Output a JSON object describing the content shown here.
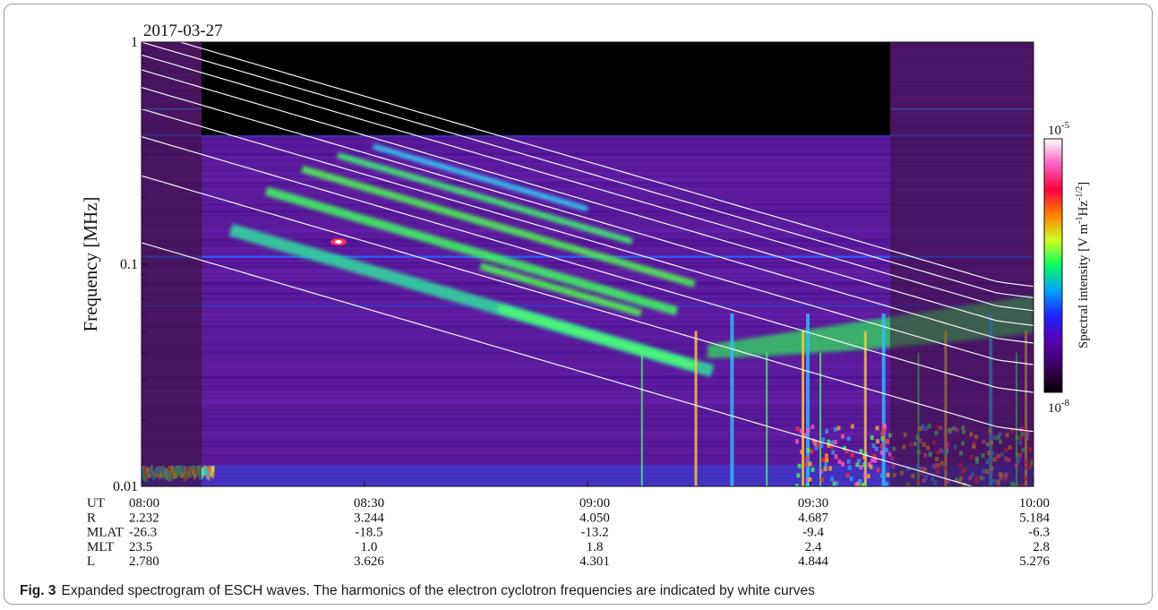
{
  "chart_data": {
    "type": "heatmap",
    "date_label": "2017-03-27",
    "ylabel": "Frequency [MHz]",
    "yscale": "log",
    "ylim": [
      0.01,
      1
    ],
    "y_ticks": [
      {
        "value": 1,
        "label": "1"
      },
      {
        "value": 0.1,
        "label": "0.1"
      },
      {
        "value": 0.01,
        "label": "0.01"
      }
    ],
    "colorbar": {
      "label": "Spectral intensity [V m-1Hz-1/2]",
      "label_parts": [
        "Spectral intensity [V m",
        "-1",
        "Hz",
        "-1/2",
        "]"
      ],
      "scale": "log",
      "min_label": {
        "base": "10",
        "exp": "-8"
      },
      "max_label": {
        "base": "10",
        "exp": "-5"
      },
      "colors": [
        "#000000",
        "#3a0060",
        "#5a00b0",
        "#2020ff",
        "#00a0ff",
        "#00ff60",
        "#d0ff20",
        "#ff8000",
        "#ff0040",
        "#ff60c0",
        "#ffffff"
      ]
    },
    "x_ticks": [
      "08:00",
      "08:30",
      "09:00",
      "09:30",
      "10:00"
    ],
    "ephemeris": [
      {
        "name": "UT",
        "values": [
          "08:00",
          "08:30",
          "09:00",
          "09:30",
          "10:00"
        ]
      },
      {
        "name": "R",
        "values": [
          "2.232",
          "3.244",
          "4.050",
          "4.687",
          "5.184"
        ]
      },
      {
        "name": "MLAT",
        "values": [
          "-26.3",
          "-18.5",
          "-13.2",
          "-9.4",
          "-6.3"
        ]
      },
      {
        "name": "MLT",
        "values": [
          "23.5",
          "1.0",
          "1.8",
          "2.4",
          "2.8"
        ]
      },
      {
        "name": "L",
        "values": [
          "2.780",
          "3.626",
          "4.301",
          "4.844",
          "5.276"
        ]
      }
    ],
    "harmonic_fce_start_MHz": 0.125,
    "harmonic_fce_end_MHz": 0.0083,
    "harmonics": [
      1,
      2,
      3,
      4,
      5,
      6,
      7,
      8,
      9
    ],
    "background_color": "#5a1a9a"
  },
  "caption": {
    "label": "Fig. 3",
    "text": "Expanded spectrogram of ESCH waves. The harmonics of the electron cyclotron frequencies are indicated by white curves"
  }
}
